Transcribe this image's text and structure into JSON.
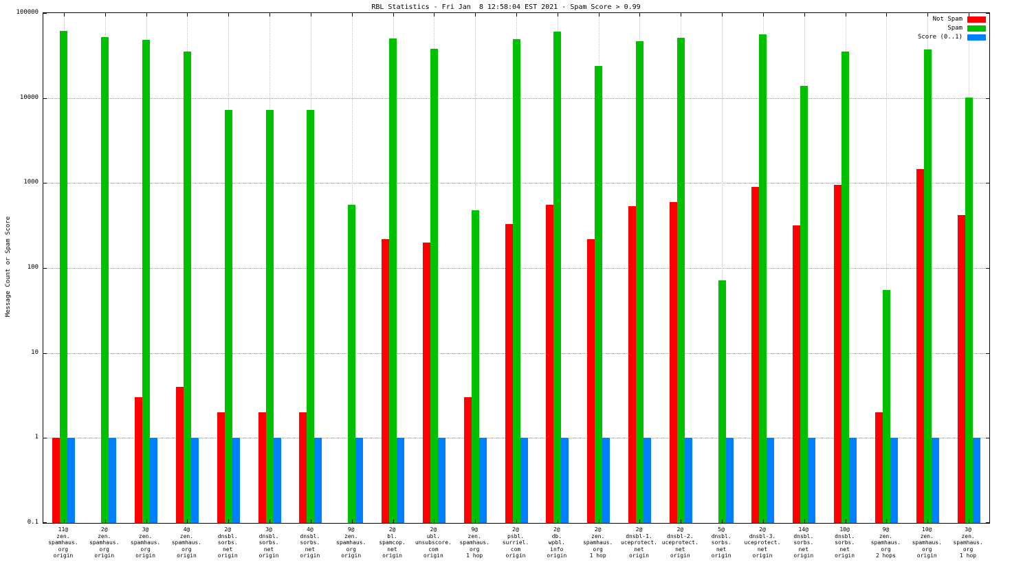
{
  "title": "RBL Statistics - Fri Jan  8 12:58:04 EST 2021 - Spam Score > 0.99",
  "ylabel": "Message Count or Spam Score",
  "colors": {
    "not_spam": "#ff0000",
    "spam": "#00c000",
    "score": "#0080ff",
    "grid": "#9a9a9a"
  },
  "legend": [
    {
      "label": "Not Spam",
      "color": "#ff0000"
    },
    {
      "label": "Spam",
      "color": "#00c000"
    },
    {
      "label": "Score (0..1)",
      "color": "#0080ff"
    }
  ],
  "chart_data": {
    "type": "bar",
    "yscale": "log",
    "ylim": [
      0.1,
      100000
    ],
    "ytick_labels": [
      "100000",
      "10000",
      "1000",
      "100",
      "10",
      "1",
      "0.1"
    ],
    "xlabel": "",
    "ylabel": "Message Count or Spam Score",
    "grid": true,
    "legend_position": "top-right",
    "categories": [
      [
        "11@",
        "zen.",
        "spamhaus.",
        "org",
        "origin"
      ],
      [
        "2@",
        "zen.",
        "spamhaus.",
        "org",
        "origin"
      ],
      [
        "3@",
        "zen.",
        "spamhaus.",
        "org",
        "origin"
      ],
      [
        "4@",
        "zen.",
        "spamhaus.",
        "org",
        "origin"
      ],
      [
        "2@",
        "dnsbl.",
        "sorbs.",
        "net",
        "origin"
      ],
      [
        "3@",
        "dnsbl.",
        "sorbs.",
        "net",
        "origin"
      ],
      [
        "4@",
        "dnsbl.",
        "sorbs.",
        "net",
        "origin"
      ],
      [
        "9@",
        "zen.",
        "spamhaus.",
        "org",
        "origin"
      ],
      [
        "2@",
        "bl.",
        "spamcop.",
        "net",
        "origin"
      ],
      [
        "2@",
        "ubl.",
        "unsubscore.",
        "com",
        "origin"
      ],
      [
        "9@",
        "zen.",
        "spamhaus.",
        "org",
        "1 hop"
      ],
      [
        "2@",
        "psbl.",
        "surriel.",
        "com",
        "origin"
      ],
      [
        "2@",
        "db.",
        "wpbl.",
        "info",
        "origin"
      ],
      [
        "2@",
        "zen.",
        "spamhaus.",
        "org",
        "1 hop"
      ],
      [
        "2@",
        "dnsbl-1.",
        "uceprotect.",
        "net",
        "origin"
      ],
      [
        "2@",
        "dnsbl-2.",
        "uceprotect.",
        "net",
        "origin"
      ],
      [
        "5@",
        "dnsbl.",
        "sorbs.",
        "net",
        "origin"
      ],
      [
        "2@",
        "dnsbl-3.",
        "uceprotect.",
        "net",
        "origin"
      ],
      [
        "14@",
        "dnsbl.",
        "sorbs.",
        "net",
        "origin"
      ],
      [
        "10@",
        "dnsbl.",
        "sorbs.",
        "net",
        "origin"
      ],
      [
        "9@",
        "zen.",
        "spamhaus.",
        "org",
        "2 hops"
      ],
      [
        "10@",
        "zen.",
        "spamhaus.",
        "org",
        "origin"
      ],
      [
        "3@",
        "zen.",
        "spamhaus.",
        "org",
        "1 hop"
      ]
    ],
    "series": [
      {
        "name": "Not Spam",
        "color": "#ff0000",
        "values": [
          1,
          0.1,
          3,
          4,
          2,
          2,
          2,
          0.1,
          220,
          200,
          3,
          330,
          550,
          220,
          530,
          600,
          0.1,
          900,
          320,
          950,
          2,
          1450,
          420
        ]
      },
      {
        "name": "Spam",
        "color": "#00c000",
        "values": [
          62000,
          52000,
          48000,
          35000,
          7200,
          7200,
          7200,
          550,
          50000,
          38000,
          480,
          49000,
          60000,
          24000,
          47000,
          51000,
          72,
          56000,
          14000,
          35000,
          55,
          37000,
          10200
        ]
      },
      {
        "name": "Score (0..1)",
        "color": "#0080ff",
        "values": [
          1,
          1,
          1,
          1,
          1,
          1,
          1,
          1,
          1,
          1,
          1,
          1,
          1,
          1,
          1,
          1,
          1,
          1,
          1,
          1,
          1,
          1,
          1
        ]
      }
    ]
  }
}
